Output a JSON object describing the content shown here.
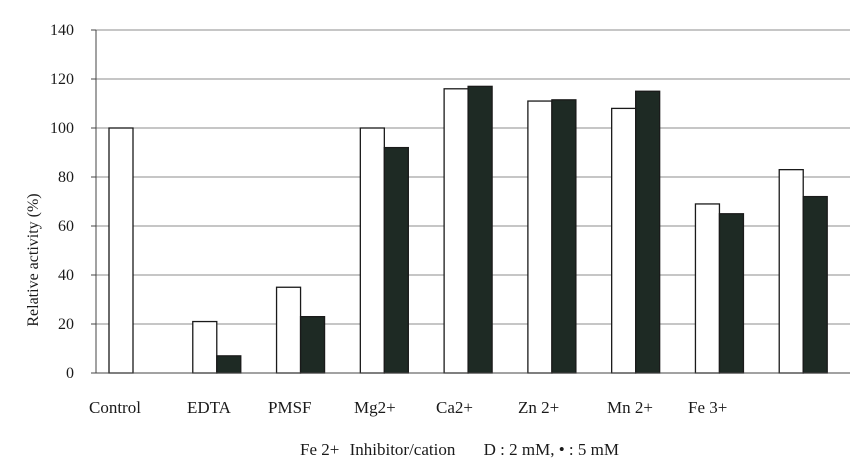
{
  "chart_data": {
    "type": "bar",
    "ylabel": "Relative activity (%)",
    "xlabel": "Inhibitor/cation",
    "ylim": [
      0,
      140
    ],
    "yticks": [
      0,
      20,
      40,
      60,
      80,
      100,
      120,
      140
    ],
    "grid": true,
    "categories": [
      "Control",
      "EDTA",
      "PMSF",
      "Mg2+",
      "Ca2+",
      "Zn 2+",
      "Mn 2+",
      "Fe 3+",
      "Fe 2+"
    ],
    "series": [
      {
        "name": "2 mM",
        "color": "#ffffff",
        "values": [
          100,
          21,
          35,
          100,
          116,
          111,
          108,
          69,
          83
        ]
      },
      {
        "name": "5 mM",
        "color": "#1e2a24",
        "values": [
          null,
          7,
          23,
          92,
          117,
          111.5,
          115,
          65,
          72
        ]
      }
    ],
    "legend_text": "D : 2 mM,   • : 5 mM",
    "footer_category": "Fe 2+"
  }
}
